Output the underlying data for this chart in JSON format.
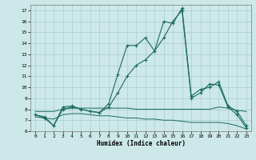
{
  "title": "",
  "xlabel": "Humidex (Indice chaleur)",
  "bg_color": "#cde8e8",
  "grid_color": "#aacccc",
  "line_color": "#1a6b5a",
  "xlim": [
    -0.5,
    23.5
  ],
  "ylim": [
    6,
    17.5
  ],
  "xticks": [
    0,
    1,
    2,
    3,
    4,
    5,
    6,
    7,
    8,
    9,
    10,
    11,
    12,
    13,
    14,
    15,
    16,
    17,
    18,
    19,
    20,
    21,
    22,
    23
  ],
  "yticks": [
    6,
    7,
    8,
    9,
    10,
    11,
    12,
    13,
    14,
    15,
    16,
    17
  ],
  "series1_x": [
    0,
    1,
    2,
    3,
    4,
    5,
    6,
    7,
    8,
    9,
    10,
    11,
    12,
    13,
    14,
    15,
    16,
    17,
    18,
    19,
    20,
    21,
    22,
    23
  ],
  "series1_y": [
    7.5,
    7.2,
    6.5,
    8.2,
    8.3,
    8.0,
    7.8,
    7.7,
    8.5,
    11.2,
    13.8,
    13.8,
    14.5,
    13.3,
    16.0,
    15.8,
    17.2,
    9.2,
    9.8,
    10.0,
    10.5,
    8.3,
    7.8,
    6.5
  ],
  "series2_x": [
    0,
    1,
    2,
    3,
    4,
    5,
    6,
    7,
    8,
    9,
    10,
    11,
    12,
    13,
    14,
    15,
    16,
    17,
    18,
    19,
    20,
    21,
    22,
    23
  ],
  "series2_y": [
    7.5,
    7.3,
    6.5,
    8.0,
    8.2,
    8.0,
    7.8,
    7.7,
    8.2,
    9.5,
    11.0,
    12.0,
    12.5,
    13.3,
    14.5,
    16.0,
    17.0,
    9.0,
    9.5,
    10.3,
    10.2,
    8.2,
    7.5,
    6.3
  ],
  "series3_x": [
    0,
    1,
    2,
    3,
    4,
    5,
    6,
    7,
    8,
    9,
    10,
    11,
    12,
    13,
    14,
    15,
    16,
    17,
    18,
    19,
    20,
    21,
    22,
    23
  ],
  "series3_y": [
    7.8,
    7.8,
    7.8,
    8.0,
    8.1,
    8.1,
    8.1,
    8.1,
    8.1,
    8.1,
    8.1,
    8.0,
    8.0,
    8.0,
    8.0,
    8.0,
    8.0,
    8.0,
    8.0,
    8.0,
    8.2,
    8.1,
    7.9,
    7.8
  ],
  "series4_x": [
    0,
    1,
    2,
    3,
    4,
    5,
    6,
    7,
    8,
    9,
    10,
    11,
    12,
    13,
    14,
    15,
    16,
    17,
    18,
    19,
    20,
    21,
    22,
    23
  ],
  "series4_y": [
    7.3,
    7.2,
    7.1,
    7.5,
    7.6,
    7.6,
    7.5,
    7.4,
    7.4,
    7.3,
    7.2,
    7.2,
    7.1,
    7.1,
    7.0,
    7.0,
    6.9,
    6.8,
    6.8,
    6.8,
    6.8,
    6.7,
    6.5,
    6.2
  ]
}
